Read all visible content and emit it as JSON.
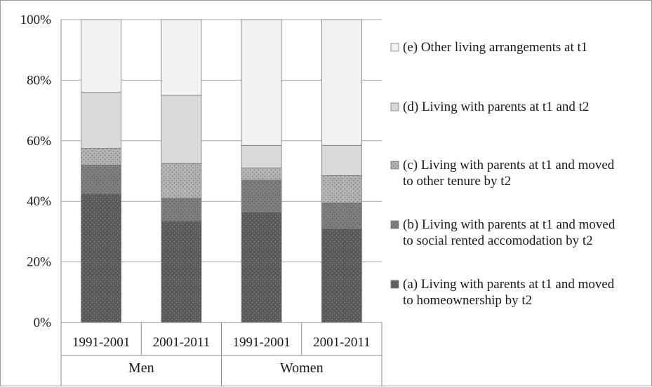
{
  "chart_data": {
    "type": "bar",
    "stacked": true,
    "normalized_percent": true,
    "groups": [
      {
        "label": "Men",
        "categories": [
          "1991-2001",
          "2001-2011"
        ]
      },
      {
        "label": "Women",
        "categories": [
          "1991-2001",
          "2001-2011"
        ]
      }
    ],
    "categories": [
      "1991-2001",
      "2001-2011",
      "1991-2001",
      "2001-2011"
    ],
    "y_ticks": [
      "0%",
      "20%",
      "40%",
      "60%",
      "80%",
      "100%"
    ],
    "ylim": [
      0,
      100
    ],
    "grid": true,
    "legend_position": "right",
    "series": [
      {
        "name": "(a) Living with parents at t1 and moved to homeownership by t2",
        "legend_lines": [
          "(a) Living with parents at t1 and moved",
          "to homeownership by t2"
        ],
        "color": "#595959",
        "pattern": "dots-light",
        "values": [
          42.5,
          33.5,
          36.5,
          31
        ]
      },
      {
        "name": "(b) Living with parents at t1 and moved to social rented accomodation by t2",
        "legend_lines": [
          "(b) Living with parents at t1 and moved",
          "to social rented accomodation by t2"
        ],
        "color": "#7f7f7f",
        "pattern": "dots-dark",
        "values": [
          9.5,
          7.5,
          10.5,
          8.5
        ]
      },
      {
        "name": "(c) Living with parents at t1 and moved to other tenure by t2",
        "legend_lines": [
          "(c) Living with parents at t1 and moved",
          "to other tenure by t2"
        ],
        "color": "#b0b0b0",
        "pattern": "dots-dark",
        "values": [
          5.5,
          11.5,
          4,
          9
        ]
      },
      {
        "name": "(d) Living with parents at t1 and t2",
        "legend_lines": [
          "(d) Living with parents at t1 and t2"
        ],
        "color": "#d9d9d9",
        "pattern": "none",
        "values": [
          18.5,
          22.5,
          7.5,
          10
        ]
      },
      {
        "name": "(e) Other living arrangements at t1",
        "legend_lines": [
          "(e) Other living arrangements at t1"
        ],
        "color": "#f2f2f2",
        "pattern": "none",
        "values": [
          24,
          25,
          41.5,
          41.5
        ]
      }
    ]
  }
}
